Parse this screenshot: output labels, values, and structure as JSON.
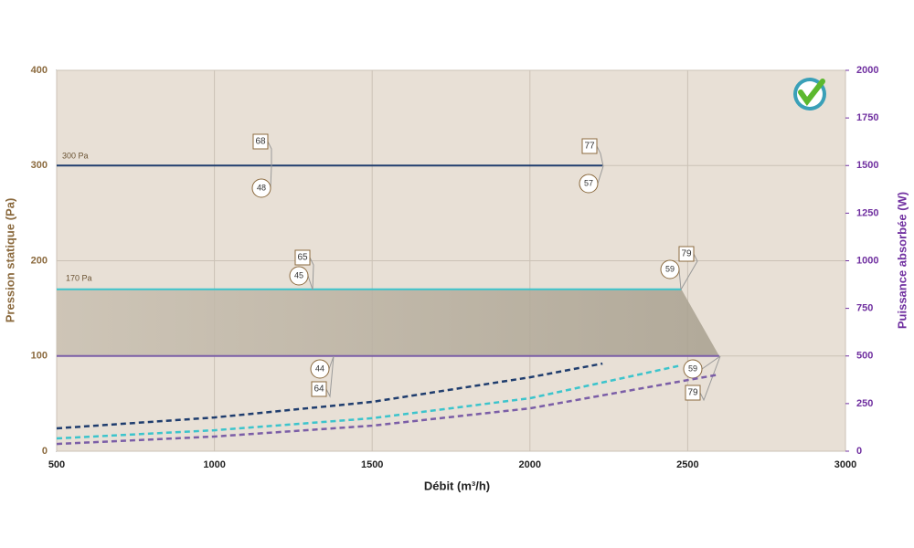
{
  "chart_data": {
    "type": "line",
    "x_label": "Débit (m³/h)",
    "y_label": "Pression statique (Pa)",
    "y2_label": "Puissance absorbée (W)",
    "xlim": [
      500,
      3000
    ],
    "xticks": [
      500,
      1000,
      1500,
      2000,
      2500,
      3000
    ],
    "ylim": [
      0,
      400
    ],
    "yticks": [
      0,
      100,
      200,
      300,
      400
    ],
    "y2lim": [
      0,
      2000
    ],
    "y2ticks": [
      0,
      250,
      500,
      750,
      1000,
      1250,
      1500,
      1750,
      2000
    ],
    "grid": true,
    "series": [
      {
        "name": "300 Pa",
        "color": "#1f3d6e",
        "x": [
          500,
          2230
        ],
        "values": [
          300,
          300
        ],
        "annotations": [
          {
            "square": 68,
            "circle": 48
          },
          {
            "square": 77,
            "circle": 57
          }
        ]
      },
      {
        "name": "170 Pa",
        "color": "#3cc4cc",
        "x": [
          500,
          2480
        ],
        "values": [
          170,
          170
        ],
        "annotations": [
          {
            "square": 65,
            "circle": 45
          },
          {
            "square": 79,
            "circle": 59
          }
        ]
      },
      {
        "color": "#7b5ea7",
        "x": [
          500,
          2600
        ],
        "values": [
          100,
          100
        ],
        "annotations": [
          {
            "square": 64,
            "circle": 44
          },
          {
            "square": 79,
            "circle": 59
          }
        ]
      },
      {
        "color": "#1f3d6e",
        "dashed": true,
        "axis": "y2",
        "x": [
          500,
          1000,
          1500,
          2000,
          2230
        ],
        "values": [
          120,
          177,
          259,
          388,
          460
        ]
      },
      {
        "color": "#3cc4cc",
        "dashed": true,
        "axis": "y2",
        "x": [
          500,
          1000,
          1500,
          2000,
          2480
        ],
        "values": [
          67,
          110,
          173,
          278,
          451
        ]
      },
      {
        "color": "#7b5ea7",
        "dashed": true,
        "axis": "y2",
        "x": [
          500,
          1000,
          1500,
          2000,
          2600
        ],
        "values": [
          38,
          77,
          134,
          225,
          403
        ]
      }
    ]
  }
}
